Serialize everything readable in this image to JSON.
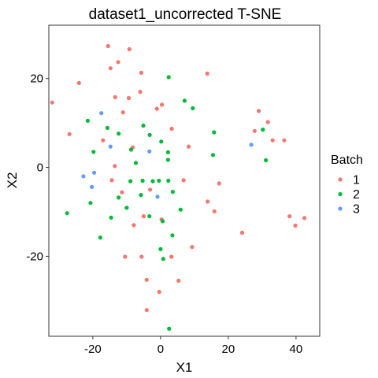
{
  "chart_data": {
    "type": "scatter",
    "title": "dataset1_uncorrected T-SNE",
    "xlabel": "X1",
    "ylabel": "X2",
    "xlim": [
      -33,
      47
    ],
    "ylim": [
      -38,
      32
    ],
    "x_ticks": [
      -20,
      0,
      20,
      40
    ],
    "y_ticks": [
      -20,
      0,
      20
    ],
    "x_tick_labels": [
      "-20",
      "0",
      "20",
      "40"
    ],
    "y_tick_labels": [
      "-20",
      "0",
      "20"
    ],
    "grid": false,
    "legend": {
      "title": "Batch",
      "position": "right"
    },
    "series": [
      {
        "name": "1",
        "color": "#F8766D",
        "points": [
          [
            -15.5,
            27.3
          ],
          [
            -12.5,
            23.7
          ],
          [
            -9.2,
            26.6
          ],
          [
            -14.8,
            22.3
          ],
          [
            -5.7,
            21.3
          ],
          [
            -24.1,
            19.0
          ],
          [
            -32.0,
            14.6
          ],
          [
            -13.4,
            15.8
          ],
          [
            -9.4,
            15.6
          ],
          [
            -6.0,
            17.0
          ],
          [
            -11.1,
            12.4
          ],
          [
            -1.1,
            13.2
          ],
          [
            0.4,
            14.1
          ],
          [
            -26.9,
            7.5
          ],
          [
            -17.0,
            6.1
          ],
          [
            -8.2,
            4.5
          ],
          [
            3.3,
            8.7
          ],
          [
            8.3,
            4.7
          ],
          [
            -13.5,
            0.3
          ],
          [
            6.8,
            -2.9
          ],
          [
            -14.4,
            -2.9
          ],
          [
            -3.1,
            -5.0
          ],
          [
            -11.4,
            -5.6
          ],
          [
            -5.0,
            -11.0
          ],
          [
            -7.9,
            -13.0
          ],
          [
            0.3,
            -11.7
          ],
          [
            13.9,
            -7.7
          ],
          [
            15.9,
            -9.9
          ],
          [
            17.3,
            -3.6
          ],
          [
            24.1,
            -14.7
          ],
          [
            38.1,
            -11.0
          ],
          [
            39.8,
            -13.1
          ],
          [
            42.5,
            -11.4
          ],
          [
            9.3,
            -17.9
          ],
          [
            -10.5,
            -20.1
          ],
          [
            -5.6,
            -20.1
          ],
          [
            3.2,
            -20.1
          ],
          [
            -4.1,
            -25.3
          ],
          [
            5.3,
            -25.5
          ],
          [
            -0.4,
            -28.0
          ],
          [
            -4.1,
            -32.1
          ],
          [
            13.8,
            21.1
          ],
          [
            29.0,
            12.7
          ],
          [
            27.8,
            8.2
          ],
          [
            31.7,
            10.2
          ],
          [
            33.1,
            6.1
          ],
          [
            36.5,
            6.1
          ]
        ]
      },
      {
        "name": "2",
        "color": "#00BA38",
        "points": [
          [
            2.4,
            20.3
          ],
          [
            7.1,
            15.0
          ],
          [
            9.5,
            13.3
          ],
          [
            -21.5,
            10.5
          ],
          [
            -15.7,
            8.9
          ],
          [
            -12.4,
            7.6
          ],
          [
            -5.1,
            9.4
          ],
          [
            -3.2,
            7.3
          ],
          [
            0.2,
            5.8
          ],
          [
            -8.7,
            4.0
          ],
          [
            2.2,
            3.4
          ],
          [
            15.8,
            7.9
          ],
          [
            15.5,
            2.8
          ],
          [
            -19.8,
            3.5
          ],
          [
            -7.3,
            1.0
          ],
          [
            2.2,
            1.7
          ],
          [
            -12.4,
            -6.8
          ],
          [
            -8.9,
            -3.1
          ],
          [
            -5.3,
            -3.0
          ],
          [
            -2.3,
            -3.1
          ],
          [
            -0.5,
            -3.0
          ],
          [
            2.3,
            -3.0
          ],
          [
            -5.8,
            -6.2
          ],
          [
            3.6,
            -5.5
          ],
          [
            -10.0,
            -9.1
          ],
          [
            -14.6,
            -11.3
          ],
          [
            -20.7,
            -8.0
          ],
          [
            -27.6,
            -10.3
          ],
          [
            -3.3,
            -11.0
          ],
          [
            5.9,
            -9.5
          ],
          [
            0.6,
            -12.1
          ],
          [
            -17.8,
            -15.8
          ],
          [
            3.5,
            -15.3
          ],
          [
            0.0,
            -18.4
          ],
          [
            0.8,
            -20.6
          ],
          [
            2.5,
            -36.3
          ],
          [
            30.2,
            8.5
          ],
          [
            31.1,
            1.6
          ]
        ]
      },
      {
        "name": "3",
        "color": "#619CFF",
        "points": [
          [
            -17.5,
            12.2
          ],
          [
            -14.8,
            4.7
          ],
          [
            -22.8,
            -2.0
          ],
          [
            -19.6,
            -1.2
          ],
          [
            -20.3,
            -4.4
          ],
          [
            -3.3,
            3.6
          ],
          [
            -0.9,
            -6.6
          ],
          [
            26.8,
            5.1
          ]
        ]
      }
    ]
  }
}
